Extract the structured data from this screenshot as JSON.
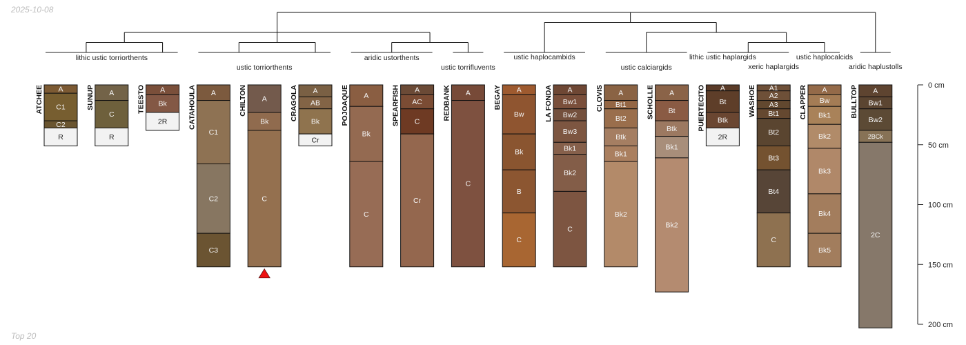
{
  "header": {
    "date": "2025-10-08"
  },
  "footer": {
    "label": "Top 20"
  },
  "depth_axis": {
    "unit": "cm",
    "max_depth": 200,
    "ticks": [
      {
        "value": 0,
        "label": "0 cm"
      },
      {
        "value": 50,
        "label": "50 cm"
      },
      {
        "value": 100,
        "label": "100 cm"
      },
      {
        "value": 150,
        "label": "150 cm"
      },
      {
        "value": 200,
        "label": "200 cm"
      }
    ]
  },
  "profiles": [
    {
      "name": "ATCHEE",
      "horizons": [
        {
          "name": "A",
          "top": 0,
          "bottom": 7,
          "color": "#7c5a33"
        },
        {
          "name": "C1",
          "top": 7,
          "bottom": 30,
          "color": "#775e30"
        },
        {
          "name": "C2",
          "top": 30,
          "bottom": 36,
          "color": "#6a5530"
        },
        {
          "name": "R",
          "top": 36,
          "bottom": 51,
          "color": "#f2f2f2"
        }
      ]
    },
    {
      "name": "SUNUP",
      "horizons": [
        {
          "name": "A",
          "top": 0,
          "bottom": 13,
          "color": "#736348"
        },
        {
          "name": "C",
          "top": 13,
          "bottom": 36,
          "color": "#6e603c"
        },
        {
          "name": "R",
          "top": 36,
          "bottom": 51,
          "color": "#f2f2f2"
        }
      ]
    },
    {
      "name": "TEESTO",
      "horizons": [
        {
          "name": "A",
          "top": 0,
          "bottom": 8,
          "color": "#7a4f3a"
        },
        {
          "name": "Bk",
          "top": 8,
          "bottom": 23,
          "color": "#835845"
        },
        {
          "name": "2R",
          "top": 23,
          "bottom": 38,
          "color": "#f2f2f2"
        }
      ]
    },
    {
      "name": "CATAHOULA",
      "horizons": [
        {
          "name": "A",
          "top": 0,
          "bottom": 13,
          "color": "#7c5a3e"
        },
        {
          "name": "C1",
          "top": 13,
          "bottom": 66,
          "color": "#8e7253"
        },
        {
          "name": "C2",
          "top": 66,
          "bottom": 124,
          "color": "#877661"
        },
        {
          "name": "C3",
          "top": 124,
          "bottom": 152,
          "color": "#6b5432"
        }
      ]
    },
    {
      "name": "CHILTON",
      "marker": "red-triangle",
      "horizons": [
        {
          "name": "A",
          "top": 0,
          "bottom": 23,
          "color": "#735a4c"
        },
        {
          "name": "Bk",
          "top": 23,
          "bottom": 38,
          "color": "#906b4e"
        },
        {
          "name": "C",
          "top": 38,
          "bottom": 152,
          "color": "#94704f"
        }
      ]
    },
    {
      "name": "CRAGOLA",
      "horizons": [
        {
          "name": "A",
          "top": 0,
          "bottom": 10,
          "color": "#7a6044"
        },
        {
          "name": "AB",
          "top": 10,
          "bottom": 20,
          "color": "#836446"
        },
        {
          "name": "Bk",
          "top": 20,
          "bottom": 41,
          "color": "#8f734e"
        },
        {
          "name": "Cr",
          "top": 41,
          "bottom": 51,
          "color": "#f2f2f2"
        }
      ]
    },
    {
      "name": "POJOAQUE",
      "horizons": [
        {
          "name": "A",
          "top": 0,
          "bottom": 18,
          "color": "#8a5e42"
        },
        {
          "name": "Bk",
          "top": 18,
          "bottom": 64,
          "color": "#946a51"
        },
        {
          "name": "C",
          "top": 64,
          "bottom": 152,
          "color": "#976c55"
        }
      ]
    },
    {
      "name": "SPEARFISH",
      "horizons": [
        {
          "name": "A",
          "top": 0,
          "bottom": 8,
          "color": "#6b4a36"
        },
        {
          "name": "AC",
          "top": 8,
          "bottom": 20,
          "color": "#7b4c34"
        },
        {
          "name": "C",
          "top": 20,
          "bottom": 41,
          "color": "#6e3a23"
        },
        {
          "name": "Cr",
          "top": 41,
          "bottom": 152,
          "color": "#94674e"
        }
      ]
    },
    {
      "name": "REDBANK",
      "horizons": [
        {
          "name": "A",
          "top": 0,
          "bottom": 13,
          "color": "#774a38"
        },
        {
          "name": "C",
          "top": 13,
          "bottom": 152,
          "color": "#7e5140"
        }
      ]
    },
    {
      "name": "BEGAY",
      "horizons": [
        {
          "name": "A",
          "top": 0,
          "bottom": 8,
          "color": "#9e5a2f"
        },
        {
          "name": "Bw",
          "top": 8,
          "bottom": 41,
          "color": "#8f5530"
        },
        {
          "name": "Bk",
          "top": 41,
          "bottom": 71,
          "color": "#8a5530"
        },
        {
          "name": "B",
          "top": 71,
          "bottom": 107,
          "color": "#8c5631"
        },
        {
          "name": "C",
          "top": 107,
          "bottom": 152,
          "color": "#a86632"
        }
      ]
    },
    {
      "name": "LA FONDA",
      "horizons": [
        {
          "name": "A",
          "top": 0,
          "bottom": 8,
          "color": "#6e4734"
        },
        {
          "name": "Bw1",
          "top": 8,
          "bottom": 20,
          "color": "#7a4f3b"
        },
        {
          "name": "Bw2",
          "top": 20,
          "bottom": 30,
          "color": "#74503d"
        },
        {
          "name": "Bw3",
          "top": 30,
          "bottom": 48,
          "color": "#7d5641"
        },
        {
          "name": "Bk1",
          "top": 48,
          "bottom": 58,
          "color": "#86604b"
        },
        {
          "name": "Bk2",
          "top": 58,
          "bottom": 89,
          "color": "#835d48"
        },
        {
          "name": "C",
          "top": 89,
          "bottom": 152,
          "color": "#7d5541"
        }
      ]
    },
    {
      "name": "CLOVIS",
      "horizons": [
        {
          "name": "A",
          "top": 0,
          "bottom": 13,
          "color": "#8a6344"
        },
        {
          "name": "Bt1",
          "top": 13,
          "bottom": 20,
          "color": "#946644"
        },
        {
          "name": "Bt2",
          "top": 20,
          "bottom": 36,
          "color": "#9a6e4c"
        },
        {
          "name": "Btk",
          "top": 36,
          "bottom": 51,
          "color": "#a57e62"
        },
        {
          "name": "Bk1",
          "top": 51,
          "bottom": 64,
          "color": "#aa7f5f"
        },
        {
          "name": "Bk2",
          "top": 64,
          "bottom": 152,
          "color": "#b38a69"
        }
      ]
    },
    {
      "name": "SCHOLLE",
      "horizons": [
        {
          "name": "A",
          "top": 0,
          "bottom": 13,
          "color": "#8a6348"
        },
        {
          "name": "Bt",
          "top": 13,
          "bottom": 30,
          "color": "#8a5b44"
        },
        {
          "name": "Btk",
          "top": 30,
          "bottom": 43,
          "color": "#9c7961"
        },
        {
          "name": "Bk1",
          "top": 43,
          "bottom": 61,
          "color": "#a88e7a"
        },
        {
          "name": "Bk2",
          "top": 61,
          "bottom": 173,
          "color": "#b48b70"
        }
      ]
    },
    {
      "name": "PUERTECITO",
      "horizons": [
        {
          "name": "A",
          "top": 0,
          "bottom": 5,
          "color": "#5a3b28"
        },
        {
          "name": "Bt",
          "top": 5,
          "bottom": 23,
          "color": "#5e3e29"
        },
        {
          "name": "Btk",
          "top": 23,
          "bottom": 36,
          "color": "#6a4631"
        },
        {
          "name": "2R",
          "top": 36,
          "bottom": 51,
          "color": "#f2f2f2"
        }
      ]
    },
    {
      "name": "WASHOE",
      "horizons": [
        {
          "name": "A1",
          "top": 0,
          "bottom": 5,
          "color": "#6e5038"
        },
        {
          "name": "A2",
          "top": 5,
          "bottom": 13,
          "color": "#6e5038"
        },
        {
          "name": "A3",
          "top": 13,
          "bottom": 20,
          "color": "#62482f"
        },
        {
          "name": "Bt1",
          "top": 20,
          "bottom": 28,
          "color": "#654830"
        },
        {
          "name": "Bt2",
          "top": 28,
          "bottom": 51,
          "color": "#5a4530"
        },
        {
          "name": "Bt3",
          "top": 51,
          "bottom": 71,
          "color": "#745230"
        },
        {
          "name": "Bt4",
          "top": 71,
          "bottom": 107,
          "color": "#574537"
        },
        {
          "name": "C",
          "top": 107,
          "bottom": 152,
          "color": "#8e7150"
        }
      ]
    },
    {
      "name": "CLAPPER",
      "horizons": [
        {
          "name": "A",
          "top": 0,
          "bottom": 8,
          "color": "#946a49"
        },
        {
          "name": "Bw",
          "top": 8,
          "bottom": 18,
          "color": "#a47c55"
        },
        {
          "name": "Bk1",
          "top": 18,
          "bottom": 33,
          "color": "#a98259"
        },
        {
          "name": "Bk2",
          "top": 33,
          "bottom": 53,
          "color": "#b18b69"
        },
        {
          "name": "Bk3",
          "top": 53,
          "bottom": 91,
          "color": "#b08869"
        },
        {
          "name": "Bk4",
          "top": 91,
          "bottom": 124,
          "color": "#a37d5d"
        },
        {
          "name": "Bk5",
          "top": 124,
          "bottom": 152,
          "color": "#a27d5d"
        }
      ]
    },
    {
      "name": "BULLTOP",
      "horizons": [
        {
          "name": "A",
          "top": 0,
          "bottom": 10,
          "color": "#5e4430"
        },
        {
          "name": "Bw1",
          "top": 10,
          "bottom": 20,
          "color": "#5b4531"
        },
        {
          "name": "Bw2",
          "top": 20,
          "bottom": 38,
          "color": "#5c4a35"
        },
        {
          "name": "2BCk",
          "top": 38,
          "bottom": 48,
          "color": "#877256"
        },
        {
          "name": "2C",
          "top": 48,
          "bottom": 203,
          "color": "#86786a"
        }
      ]
    }
  ],
  "groups": [
    {
      "label": "lithic ustic torriorthents",
      "members": [
        0,
        1,
        2
      ]
    },
    {
      "label": "ustic torriorthents",
      "members": [
        3,
        4,
        5
      ]
    },
    {
      "label": "aridic ustorthents",
      "members": [
        6,
        7
      ]
    },
    {
      "label": "ustic torrifluvents",
      "members": [
        8
      ]
    },
    {
      "label": "ustic haplocambids",
      "members": [
        9,
        10
      ]
    },
    {
      "label": "ustic calciargids",
      "members": [
        11,
        12
      ]
    },
    {
      "label": "lithic ustic haplargids",
      "members": [
        13
      ]
    },
    {
      "label": "xeric haplargids",
      "members": [
        14
      ]
    },
    {
      "label": "ustic haplocalcids",
      "members": [
        15
      ]
    },
    {
      "label": "aridic haplustolls",
      "members": [
        16
      ]
    }
  ],
  "dendrogram": {
    "tree": [
      [
        [
          [
            0,
            1
          ],
          2
        ],
        [
          [
            3,
            4
          ],
          5
        ],
        [
          [
            6,
            7
          ],
          8
        ]
      ],
      [
        [
          9,
          10
        ],
        [
          [
            11,
            12
          ],
          [
            [
              13,
              14
            ],
            15
          ]
        ]
      ],
      16
    ]
  }
}
